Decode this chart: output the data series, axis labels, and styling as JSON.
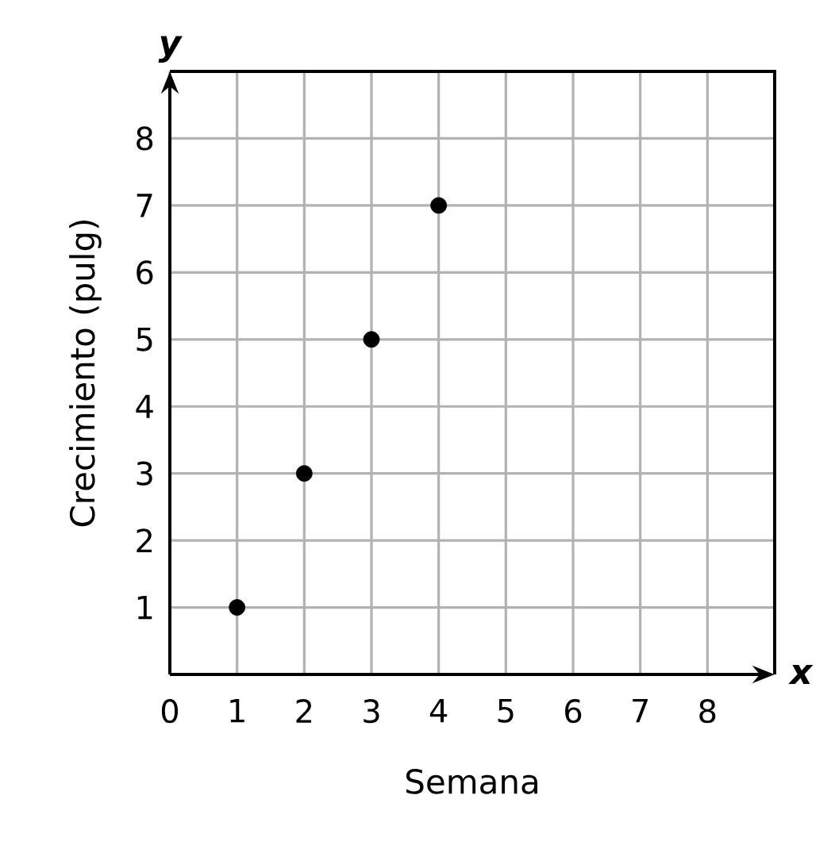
{
  "chart_data": {
    "type": "scatter",
    "xlabel": "Semana",
    "ylabel": "Crecimiento (pulg)",
    "annotations": [
      "x",
      "y"
    ],
    "x": [
      1,
      2,
      3,
      4
    ],
    "values": [
      1,
      3,
      5,
      7
    ],
    "color": "#000000",
    "marker": "circle",
    "grid": true,
    "xlim": [
      0,
      9
    ],
    "ylim": [
      0,
      9
    ],
    "xticks": [
      0,
      1,
      2,
      3,
      4,
      5,
      6,
      7,
      8
    ],
    "yticks": [
      1,
      2,
      3,
      4,
      5,
      6,
      7,
      8
    ]
  }
}
